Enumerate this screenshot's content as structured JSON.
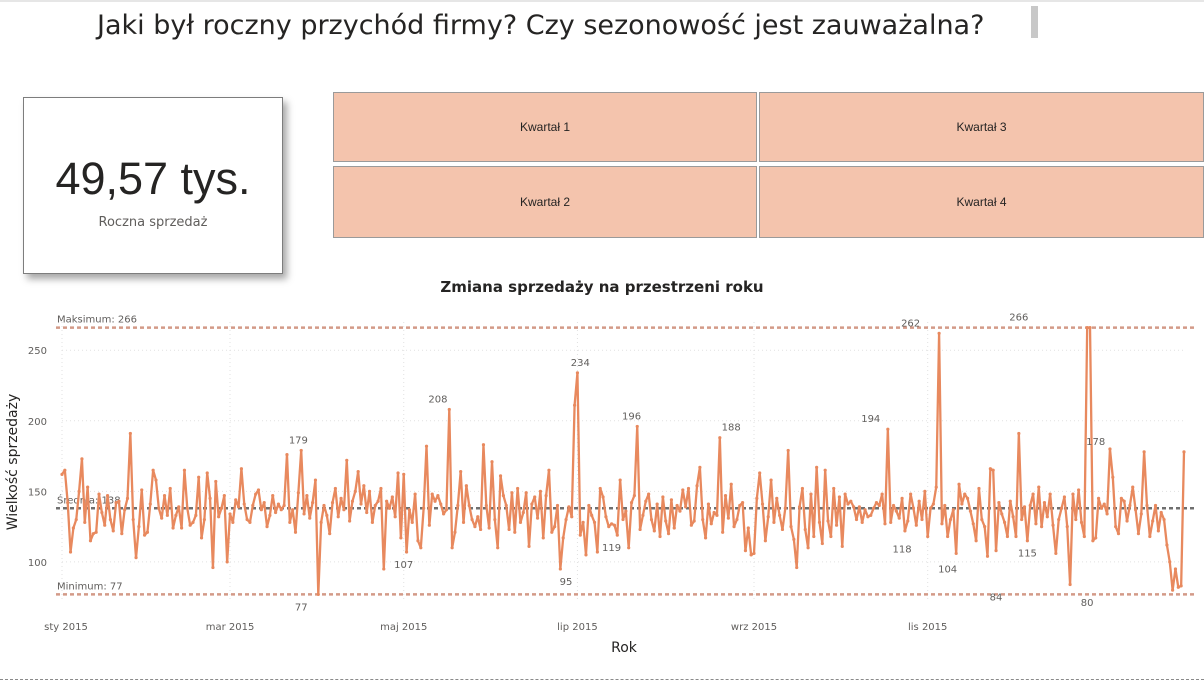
{
  "page": {
    "title": "Jaki był roczny przychód firmy? Czy sezonowość jest zauważalna?"
  },
  "kpi": {
    "value": "49,57 tys.",
    "label": "Roczna sprzedaż"
  },
  "slicer": {
    "tiles": [
      {
        "label": "Kwartał 1"
      },
      {
        "label": "Kwartał 2"
      },
      {
        "label": "Kwartał 3"
      },
      {
        "label": "Kwartał 4"
      }
    ]
  },
  "colors": {
    "line": "#e8895e",
    "reference": "#d39a88",
    "average": "#6f6f6f",
    "tile": "#f4c4ad"
  },
  "chart_data": {
    "type": "line",
    "title": "Zmiana sprzedaży na przestrzeni roku",
    "xlabel": "Rok",
    "ylabel": "Wielkość sprzedaży",
    "ylim": [
      73,
      270
    ],
    "yticks": [
      100,
      150,
      200,
      250
    ],
    "xticks": [
      "sty 2015",
      "mar 2015",
      "maj 2015",
      "lip 2015",
      "wrz 2015",
      "lis 2015"
    ],
    "xtick_days": [
      1,
      60,
      121,
      182,
      244,
      305
    ],
    "grid": true,
    "reference_lines": [
      {
        "label": "Maksimum: 266",
        "value": 266
      },
      {
        "label": "Średnia: 138",
        "value": 138
      },
      {
        "label": "Minimum: 77",
        "value": 77
      }
    ],
    "annotations": [
      {
        "day": 84,
        "value": 179,
        "label": "179"
      },
      {
        "day": 85,
        "value": 77,
        "label": "77"
      },
      {
        "day": 133,
        "value": 208,
        "label": "208"
      },
      {
        "day": 121,
        "value": 107,
        "label": "107"
      },
      {
        "day": 183,
        "value": 234,
        "label": "234"
      },
      {
        "day": 178,
        "value": 95,
        "label": "95"
      },
      {
        "day": 201,
        "value": 196,
        "label": "196"
      },
      {
        "day": 194,
        "value": 119,
        "label": "119"
      },
      {
        "day": 236,
        "value": 188,
        "label": "188"
      },
      {
        "day": 285,
        "value": 194,
        "label": "194"
      },
      {
        "day": 299,
        "value": 262,
        "label": "262"
      },
      {
        "day": 296,
        "value": 118,
        "label": "118"
      },
      {
        "day": 312,
        "value": 104,
        "label": "104"
      },
      {
        "day": 337,
        "value": 266,
        "label": "266"
      },
      {
        "day": 329,
        "value": 84,
        "label": "84"
      },
      {
        "day": 340,
        "value": 115,
        "label": "115"
      },
      {
        "day": 364,
        "value": 178,
        "label": "178"
      },
      {
        "day": 361,
        "value": 80,
        "label": "80"
      }
    ],
    "series": [
      {
        "values": [
          162,
          165,
          142,
          107,
          124,
          130,
          150,
          173,
          128,
          153,
          115,
          120,
          121,
          148,
          135,
          126,
          147,
          130,
          122,
          142,
          143,
          120,
          137,
          145,
          191,
          130,
          103,
          125,
          151,
          119,
          121,
          141,
          165,
          158,
          138,
          131,
          147,
          133,
          152,
          124,
          133,
          139,
          124,
          165,
          138,
          126,
          128,
          133,
          160,
          117,
          130,
          163,
          145,
          96,
          157,
          132,
          138,
          147,
          100,
          134,
          128,
          144,
          139,
          166,
          141,
          130,
          128,
          140,
          148,
          151,
          137,
          142,
          125,
          133,
          147,
          135,
          141,
          137,
          140,
          176,
          128,
          137,
          121,
          149,
          179,
          134,
          147,
          131,
          142,
          158,
          77,
          128,
          140,
          133,
          120,
          142,
          152,
          132,
          145,
          137,
          172,
          129,
          143,
          150,
          164,
          141,
          154,
          135,
          150,
          128,
          140,
          143,
          152,
          95,
          143,
          138,
          146,
          132,
          163,
          117,
          162,
          107,
          137,
          128,
          148,
          115,
          110,
          138,
          182,
          126,
          148,
          143,
          147,
          141,
          134,
          137,
          208,
          110,
          121,
          140,
          164,
          128,
          154,
          140,
          130,
          125,
          132,
          123,
          183,
          140,
          124,
          171,
          130,
          110,
          161,
          147,
          140,
          123,
          149,
          121,
          152,
          128,
          135,
          149,
          111,
          141,
          146,
          131,
          150,
          117,
          147,
          165,
          121,
          125,
          140,
          95,
          117,
          130,
          139,
          132,
          211,
          234,
          119,
          128,
          105,
          140,
          133,
          128,
          107,
          152,
          146,
          132,
          125,
          127,
          126,
          119,
          158,
          130,
          136,
          110,
          142,
          147,
          196,
          123,
          133,
          143,
          148,
          130,
          122,
          141,
          118,
          146,
          129,
          120,
          144,
          124,
          140,
          136,
          151,
          139,
          152,
          126,
          129,
          154,
          167,
          130,
          117,
          141,
          127,
          135,
          133,
          188,
          121,
          147,
          131,
          155,
          125,
          130,
          140,
          142,
          108,
          124,
          105,
          106,
          145,
          163,
          141,
          115,
          132,
          158,
          128,
          145,
          133,
          123,
          138,
          179,
          125,
          116,
          96,
          139,
          152,
          123,
          110,
          148,
          118,
          167,
          128,
          113,
          165,
          129,
          118,
          152,
          126,
          146,
          111,
          148,
          141,
          143,
          139,
          130,
          139,
          128,
          137,
          132,
          133,
          138,
          142,
          140,
          148,
          127,
          194,
          128,
          140,
          136,
          131,
          145,
          122,
          129,
          148,
          138,
          126,
          143,
          130,
          150,
          118,
          138,
          141,
          153,
          262,
          127,
          140,
          118,
          130,
          137,
          106,
          155,
          141,
          148,
          145,
          136,
          127,
          115,
          152,
          130,
          125,
          104,
          166,
          165,
          108,
          142,
          134,
          128,
          118,
          143,
          132,
          118,
          191,
          130,
          139,
          115,
          140,
          148,
          127,
          153,
          125,
          142,
          132,
          148,
          126,
          106,
          130,
          138,
          146,
          125,
          84,
          148,
          130,
          151,
          128,
          118,
          266,
          266,
          115,
          117,
          145,
          138,
          141,
          134,
          180,
          160,
          125,
          120,
          145,
          143,
          129,
          140,
          153,
          137,
          120,
          134,
          178,
          140,
          118,
          129,
          140,
          122,
          135,
          130,
          112,
          100,
          80,
          95,
          82,
          83,
          178
        ]
      }
    ]
  }
}
